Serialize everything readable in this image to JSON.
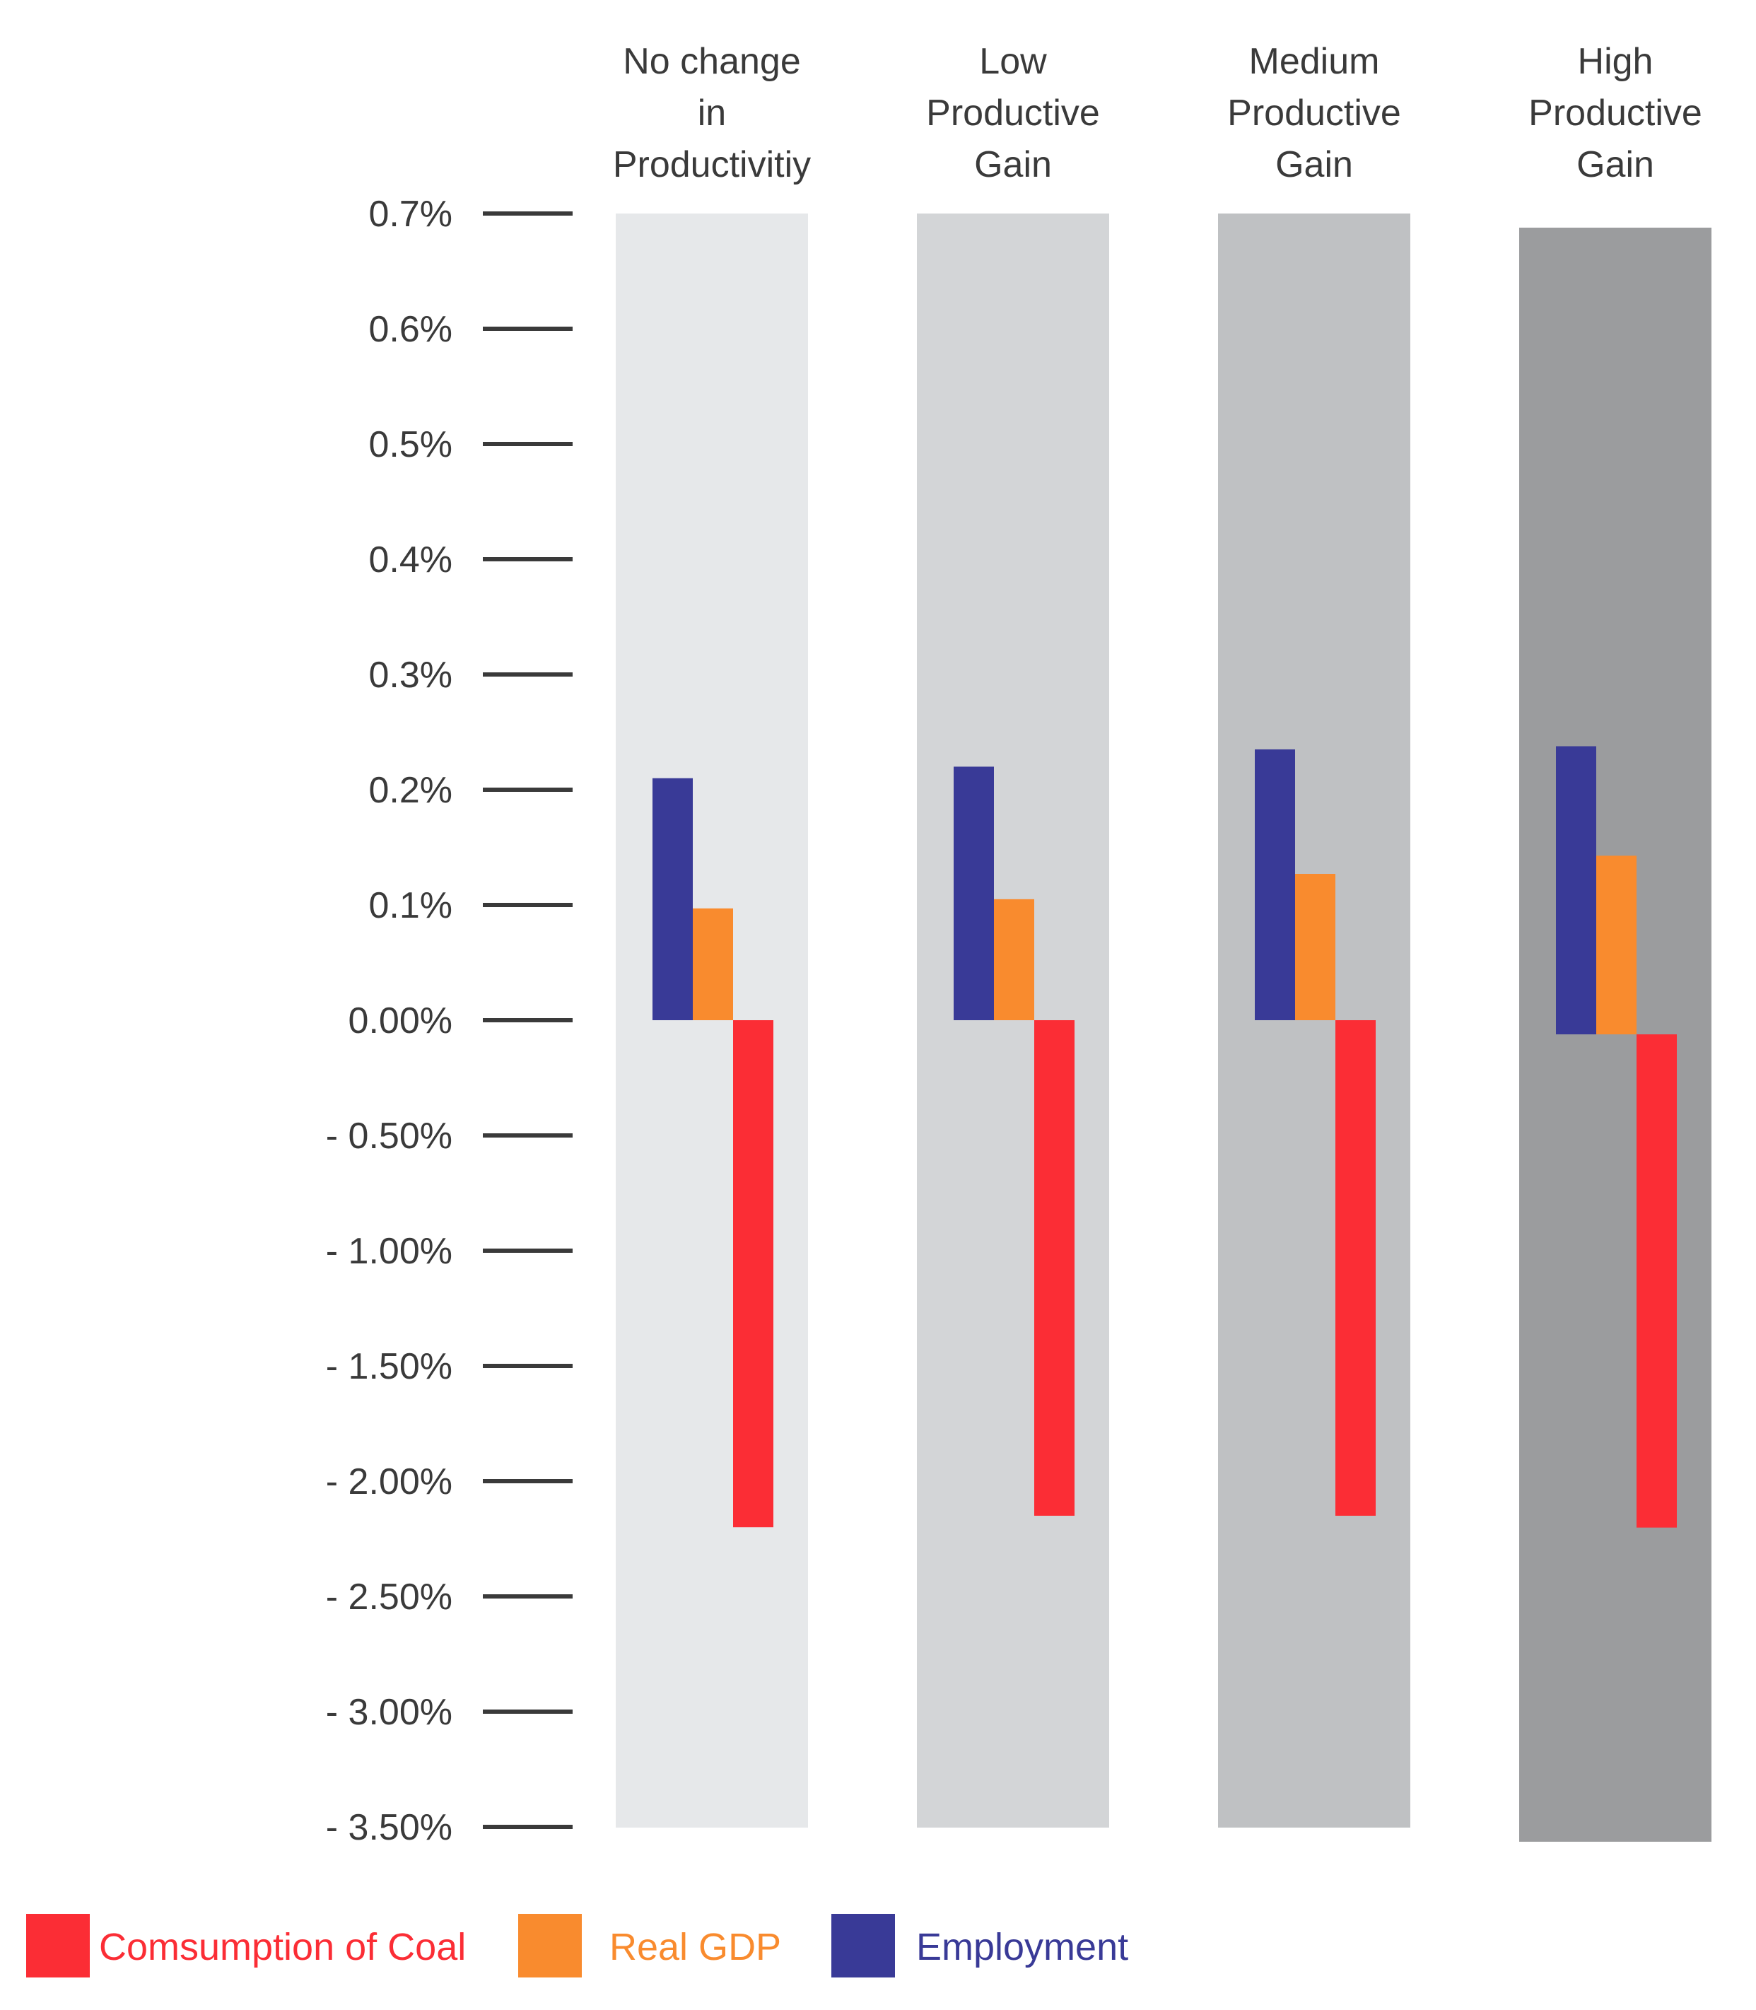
{
  "chart_data": {
    "type": "bar",
    "title": "",
    "xlabel": "",
    "ylabel": "",
    "categories": [
      [
        "No change",
        "in",
        "Productivitiy"
      ],
      [
        "Low",
        "Productive",
        "Gain"
      ],
      [
        "Medium",
        "Productive",
        "Gain"
      ],
      [
        "High",
        "Productive",
        "Gain"
      ]
    ],
    "category_background_colors": [
      "#e6e8ea",
      "#d3d5d7",
      "#bfc1c3",
      "#9b9c9e"
    ],
    "y_ticks": [
      {
        "label": "0.7%",
        "value": 0.7
      },
      {
        "label": "0.6%",
        "value": 0.6
      },
      {
        "label": "0.5%",
        "value": 0.5
      },
      {
        "label": "0.4%",
        "value": 0.4
      },
      {
        "label": "0.3%",
        "value": 0.3
      },
      {
        "label": "0.2%",
        "value": 0.2
      },
      {
        "label": "0.1%",
        "value": 0.1
      },
      {
        "label": "0.00%",
        "value": 0.0
      },
      {
        "label": "- 0.50%",
        "value": -0.5
      },
      {
        "label": "- 1.00%",
        "value": -1.0
      },
      {
        "label": "- 1.50%",
        "value": -1.5
      },
      {
        "label": "- 2.00%",
        "value": -2.0
      },
      {
        "label": "- 2.50%",
        "value": -2.5
      },
      {
        "label": "- 3.00%",
        "value": -3.0
      },
      {
        "label": "- 3.50%",
        "value": -3.5
      }
    ],
    "scale_note": "Axis is piecewise: 0.1% per tick above zero, 0.5% per tick below zero",
    "series": [
      {
        "name": "Employment",
        "color": "#393a97",
        "values": [
          0.21,
          0.22,
          0.235,
          0.25
        ]
      },
      {
        "name": "Real GDP",
        "color": "#f98b2e",
        "values": [
          0.097,
          0.105,
          0.127,
          0.155
        ]
      },
      {
        "name": "Consumption of Coal",
        "color": "#fb2d35",
        "values": [
          -2.2,
          -2.15,
          -2.15,
          -2.14
        ]
      }
    ],
    "legend": [
      {
        "name": "Comsumption of Coal",
        "color": "#fb2d35"
      },
      {
        "name": "Real GDP",
        "color": "#f98b2e"
      },
      {
        "name": "Employment",
        "color": "#393a97"
      }
    ],
    "legend_position": "bottom-left"
  }
}
